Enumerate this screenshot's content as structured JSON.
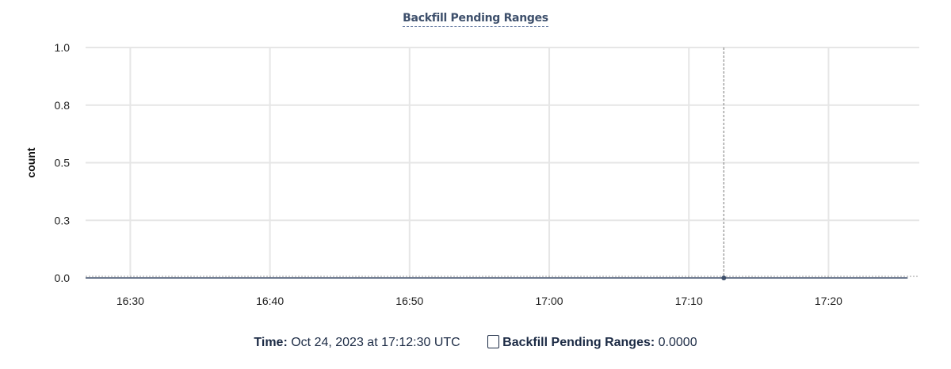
{
  "chart_data": {
    "type": "line",
    "title": "Backfill Pending Ranges",
    "ylabel": "count",
    "xlabel": "",
    "ylim": [
      0,
      1
    ],
    "xlim": [
      "16:26:48",
      "17:26:30"
    ],
    "y_ticks": [
      {
        "value": 0,
        "label": "0.0"
      },
      {
        "value": 0.25,
        "label": "0.3"
      },
      {
        "value": 0.5,
        "label": "0.5"
      },
      {
        "value": 0.75,
        "label": "0.8"
      },
      {
        "value": 1,
        "label": "1.0"
      }
    ],
    "x_ticks": [
      "16:30",
      "16:40",
      "16:50",
      "17:00",
      "17:10",
      "17:20"
    ],
    "grid": true,
    "series": [
      {
        "name": "Backfill Pending Ranges",
        "color": "#3d4f6b",
        "x": [
          "16:26:48",
          "17:25:40"
        ],
        "y": [
          0,
          0
        ]
      }
    ],
    "hover": {
      "time": "17:12:30",
      "value": 0
    }
  },
  "legend": {
    "time_label": "Time:",
    "time_value": "Oct 24, 2023 at 17:12:30 UTC",
    "series_label": "Backfill Pending Ranges:",
    "series_value": "0.0000"
  }
}
